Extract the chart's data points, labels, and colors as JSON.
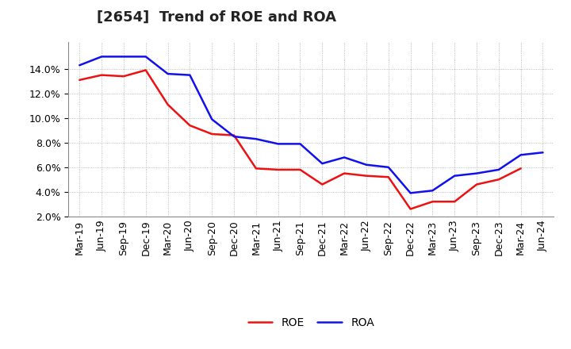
{
  "title": "[2654]  Trend of ROE and ROA",
  "x_labels": [
    "Mar-19",
    "Jun-19",
    "Sep-19",
    "Dec-19",
    "Mar-20",
    "Jun-20",
    "Sep-20",
    "Dec-20",
    "Mar-21",
    "Jun-21",
    "Sep-21",
    "Dec-21",
    "Mar-22",
    "Jun-22",
    "Sep-22",
    "Dec-22",
    "Mar-23",
    "Jun-23",
    "Sep-23",
    "Dec-23",
    "Mar-24",
    "Jun-24"
  ],
  "roe": [
    13.1,
    13.5,
    13.4,
    13.9,
    11.1,
    9.4,
    8.7,
    8.6,
    5.9,
    5.8,
    5.8,
    4.6,
    5.5,
    5.3,
    5.2,
    2.6,
    3.2,
    3.2,
    4.6,
    5.0,
    5.9,
    null
  ],
  "roa": [
    14.3,
    15.0,
    15.0,
    15.0,
    13.6,
    13.5,
    9.9,
    8.5,
    8.3,
    7.9,
    7.9,
    6.3,
    6.8,
    6.2,
    6.0,
    3.9,
    4.1,
    5.3,
    5.5,
    5.8,
    7.0,
    7.2
  ],
  "roe_color": "#ee1111",
  "roa_color": "#1111ee",
  "background_color": "#ffffff",
  "grid_color": "#aaaaaa",
  "ylim_min": 2.0,
  "ylim_max": 16.2,
  "yticks": [
    2.0,
    4.0,
    6.0,
    8.0,
    10.0,
    12.0,
    14.0
  ],
  "legend_labels": [
    "ROE",
    "ROA"
  ],
  "title_fontsize": 13,
  "axis_fontsize": 9,
  "legend_fontsize": 10,
  "line_width": 1.8
}
